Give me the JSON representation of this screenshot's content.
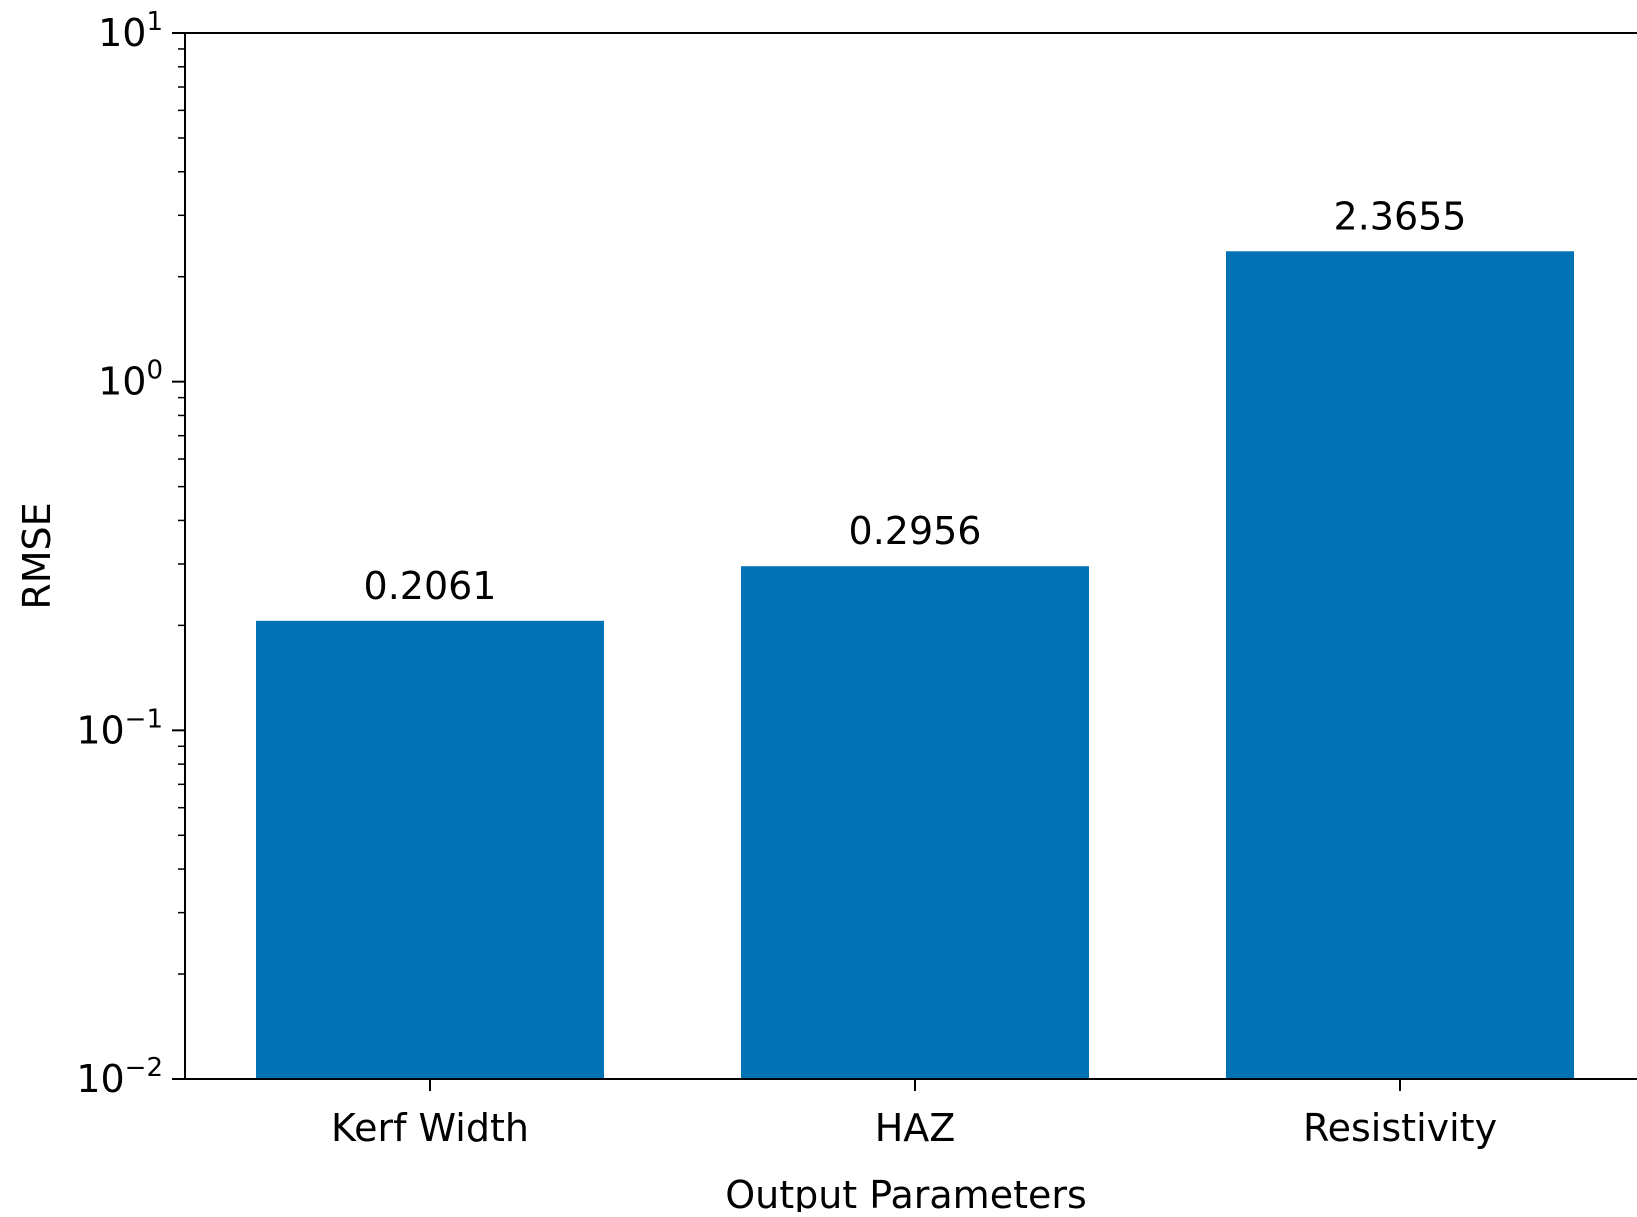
{
  "chart_data": {
    "type": "bar",
    "scale": "log",
    "title": "",
    "xlabel": "Output Parameters",
    "ylabel": "RMSE",
    "categories": [
      "Kerf Width",
      "HAZ",
      "Resistivity"
    ],
    "values": [
      0.2061,
      0.2956,
      2.3655
    ],
    "value_labels": [
      "0.2061",
      "0.2956",
      "2.3655"
    ],
    "ylim": [
      0.01,
      10
    ],
    "yticks": [
      {
        "value": 10,
        "base": "10",
        "exp": "1"
      },
      {
        "value": 1,
        "base": "10",
        "exp": "0"
      },
      {
        "value": 0.1,
        "base": "10",
        "exp": "−1"
      },
      {
        "value": 0.01,
        "base": "10",
        "exp": "−2"
      }
    ],
    "bar_color": "#0072b5",
    "grid": false,
    "legend": "none"
  }
}
